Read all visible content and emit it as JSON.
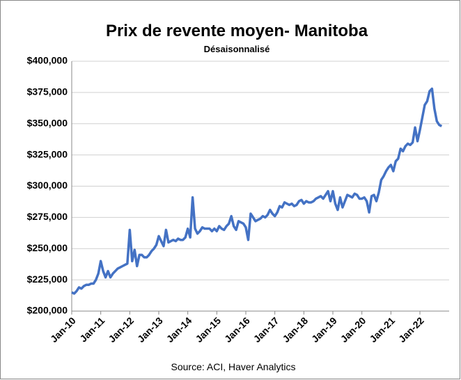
{
  "chart_data": {
    "type": "line",
    "title": "Prix de revente moyen- Manitoba",
    "subtitle": "Désaisonnalisé",
    "source": "Source: ACI, Haver Analytics",
    "color": "#4472c4",
    "categories": [
      "Jan-10",
      null,
      null,
      null,
      null,
      null,
      null,
      null,
      null,
      null,
      null,
      null,
      "Jan-11",
      null,
      null,
      null,
      null,
      null,
      null,
      null,
      null,
      null,
      null,
      null,
      "Jan-12",
      null,
      null,
      null,
      null,
      null,
      null,
      null,
      null,
      null,
      null,
      null,
      "Jan-13",
      null,
      null,
      null,
      null,
      null,
      null,
      null,
      null,
      null,
      null,
      null,
      "Jan-14",
      null,
      null,
      null,
      null,
      null,
      null,
      null,
      null,
      null,
      null,
      null,
      "Jan-15",
      null,
      null,
      null,
      null,
      null,
      null,
      null,
      null,
      null,
      null,
      null,
      "Jan-16",
      null,
      null,
      null,
      null,
      null,
      null,
      null,
      null,
      null,
      null,
      null,
      "Jan-17",
      null,
      null,
      null,
      null,
      null,
      null,
      null,
      null,
      null,
      null,
      null,
      "Jan-18",
      null,
      null,
      null,
      null,
      null,
      null,
      null,
      null,
      null,
      null,
      null,
      "Jan-19",
      null,
      null,
      null,
      null,
      null,
      null,
      null,
      null,
      null,
      null,
      null,
      "Jan-20",
      null,
      null,
      null,
      null,
      null,
      null,
      null,
      null,
      null,
      null,
      null,
      "Jan-21",
      null,
      null,
      null,
      null,
      null,
      null,
      null,
      null,
      null,
      null,
      null,
      "Jan-22",
      null,
      null,
      null,
      null,
      null,
      null,
      null,
      null,
      null
    ],
    "values": [
      215000,
      214000,
      216000,
      219000,
      218000,
      220000,
      221000,
      221000,
      222000,
      222000,
      225000,
      230000,
      240000,
      232000,
      227000,
      232000,
      227000,
      230000,
      232000,
      234000,
      235000,
      236000,
      237000,
      238000,
      265000,
      240000,
      249000,
      236000,
      245000,
      245000,
      243000,
      243000,
      245000,
      248000,
      250000,
      253000,
      260000,
      256000,
      252000,
      265000,
      255000,
      256000,
      257000,
      256000,
      258000,
      257000,
      257000,
      259000,
      266000,
      259000,
      291000,
      266000,
      262000,
      264000,
      267000,
      266000,
      266000,
      266000,
      264000,
      266000,
      264000,
      268000,
      266000,
      265000,
      268000,
      270000,
      276000,
      268000,
      265000,
      272000,
      271000,
      270000,
      267000,
      257000,
      278000,
      275000,
      272000,
      273000,
      274000,
      276000,
      275000,
      277000,
      281000,
      278000,
      276000,
      279000,
      284000,
      283000,
      287000,
      286000,
      285000,
      286000,
      284000,
      285000,
      288000,
      289000,
      286000,
      288000,
      287000,
      287000,
      288000,
      290000,
      291000,
      292000,
      290000,
      293000,
      296000,
      288000,
      296000,
      286000,
      281000,
      291000,
      283000,
      288000,
      293000,
      292000,
      291000,
      294000,
      293000,
      290000,
      290000,
      291000,
      288000,
      279000,
      292000,
      293000,
      288000,
      295000,
      305000,
      308000,
      312000,
      315000,
      317000,
      312000,
      320000,
      322000,
      330000,
      328000,
      332000,
      334000,
      333000,
      335000,
      347000,
      336000,
      345000,
      355000,
      365000,
      368000,
      376000,
      378000,
      362000,
      352000,
      349000,
      348000
    ],
    "ylim": [
      200000,
      400000
    ],
    "yticks": [
      {
        "value": 200000,
        "label": "$200,000"
      },
      {
        "value": 225000,
        "label": "$225,000"
      },
      {
        "value": 250000,
        "label": "$250,000"
      },
      {
        "value": 275000,
        "label": "$275,000"
      },
      {
        "value": 300000,
        "label": "$300,000"
      },
      {
        "value": 325000,
        "label": "$325,000"
      },
      {
        "value": 350000,
        "label": "$350,000"
      },
      {
        "value": 375000,
        "label": "$375,000"
      },
      {
        "value": 400000,
        "label": "$400,000"
      }
    ],
    "grid": true
  }
}
